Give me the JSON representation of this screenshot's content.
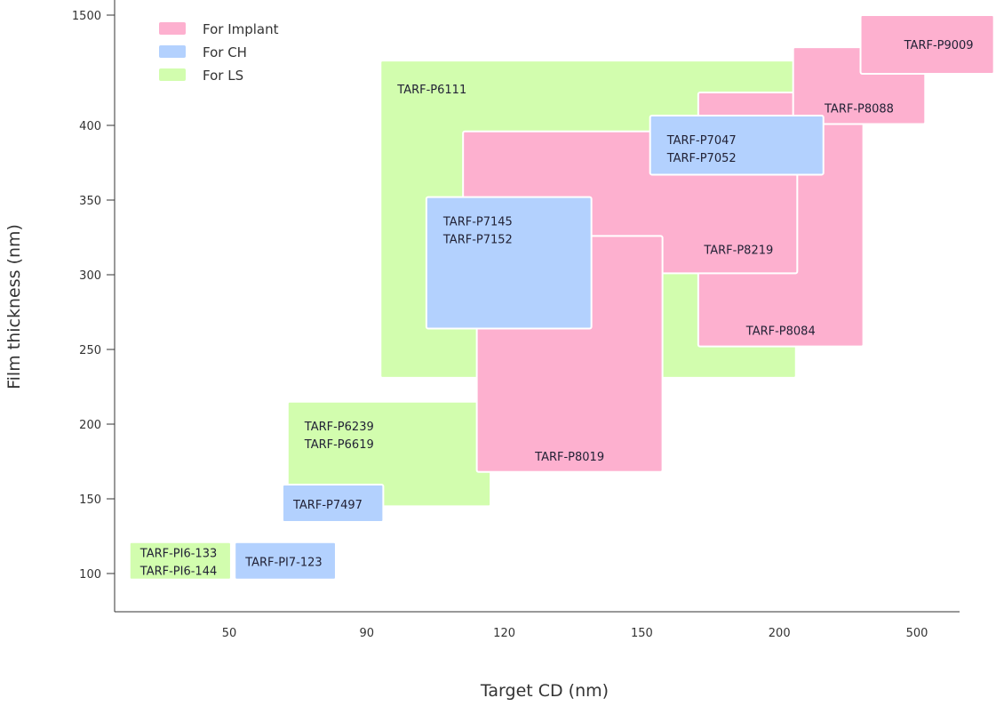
{
  "chart_data": {
    "type": "range-rectangles",
    "xlabel": "Target CD (nm)",
    "ylabel": "Film thickness (nm)",
    "x_ticks": [
      50,
      90,
      120,
      150,
      200,
      500
    ],
    "y_ticks": [
      100,
      150,
      200,
      250,
      300,
      350,
      400,
      1500
    ],
    "x_scale": "categorical-evenly-spaced-ticks",
    "y_scale": "piecewise (100-400 linear, 400-1500 compressed)",
    "legend": {
      "placement": "top-left",
      "entries": [
        {
          "key": "implant",
          "label": "For Implant",
          "color": "#fdb0cf"
        },
        {
          "key": "ch",
          "label": "For CH",
          "color": "#b3d1fe"
        },
        {
          "key": "ls",
          "label": "For LS",
          "color": "#d2fdae"
        }
      ]
    },
    "series": [
      {
        "id": "p6111",
        "category": "ls",
        "labels": [
          "TARF-P6111"
        ],
        "x": [
          93,
          236
        ],
        "y": [
          231,
          1047
        ]
      },
      {
        "id": "p6239",
        "category": "ls",
        "labels": [
          "TARF-P6239",
          "TARF-P6619"
        ],
        "x": [
          67,
          117
        ],
        "y": [
          145,
          215
        ]
      },
      {
        "id": "pi6",
        "category": "ls",
        "labels": [
          "TARF-PI6-133",
          "TARF-PI6-144"
        ],
        "x": [
          21,
          50.5
        ],
        "y": [
          96,
          121
        ]
      },
      {
        "id": "p8084",
        "category": "implant",
        "labels": [
          "TARF-P8084"
        ],
        "x": [
          170.5,
          383
        ],
        "y": [
          252,
          728
        ]
      },
      {
        "id": "p8219",
        "category": "implant",
        "labels": [
          "TARF-P8219"
        ],
        "x": [
          111,
          239
        ],
        "y": [
          301,
          396
        ]
      },
      {
        "id": "p8019",
        "category": "implant",
        "labels": [
          "TARF-P8019"
        ],
        "x": [
          114,
          157.5
        ],
        "y": [
          168,
          326
        ]
      },
      {
        "id": "p8088",
        "category": "implant",
        "labels": [
          "TARF-P8088"
        ],
        "x": [
          230,
          518
        ],
        "y": [
          413,
          1180
        ]
      },
      {
        "id": "p9009",
        "category": "implant",
        "labels": [
          "TARF-P9009"
        ],
        "x": [
          377,
          668
        ],
        "y": [
          915,
          1500
        ]
      },
      {
        "id": "p7145",
        "category": "ch",
        "labels": [
          "TARF-P7145",
          "TARF-P7152"
        ],
        "x": [
          103,
          139
        ],
        "y": [
          264,
          352
        ]
      },
      {
        "id": "p7047",
        "category": "ch",
        "labels": [
          "TARF-P7047",
          "TARF-P7052"
        ],
        "x": [
          153,
          296
        ],
        "y": [
          367,
          498
        ]
      },
      {
        "id": "p7497",
        "category": "ch",
        "labels": [
          "TARF-P7497"
        ],
        "x": [
          65.5,
          93.6
        ],
        "y": [
          134.5,
          159.5
        ]
      },
      {
        "id": "pi7",
        "category": "ch",
        "labels": [
          "TARF-PI7-123"
        ],
        "x": [
          51.6,
          81
        ],
        "y": [
          96,
          121
        ]
      }
    ]
  }
}
